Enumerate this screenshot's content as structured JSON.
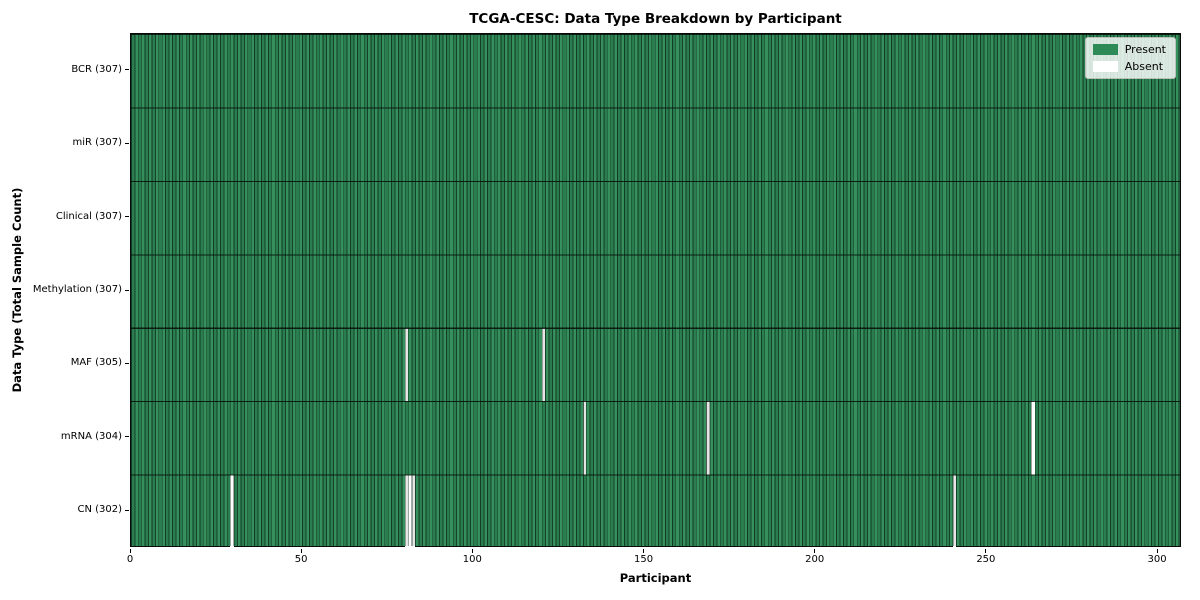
{
  "title": "TCGA-CESC: Data Type Breakdown by Participant",
  "chart_data": {
    "type": "heatmap",
    "title": "TCGA-CESC: Data Type Breakdown by Participant",
    "xlabel": "Participant",
    "ylabel": "Data Type (Total Sample Count)",
    "n_participants": 307,
    "xlim": [
      0,
      307
    ],
    "x_ticks": [
      0,
      50,
      100,
      150,
      200,
      250,
      300
    ],
    "grid": "row-and-cell-edges",
    "rows": [
      {
        "label": "BCR (307)",
        "data_type": "BCR",
        "present_count": 307,
        "absent_count": 0,
        "missing_participants": []
      },
      {
        "label": "miR (307)",
        "data_type": "miR",
        "present_count": 307,
        "absent_count": 0,
        "missing_participants": []
      },
      {
        "label": "Clinical (307)",
        "data_type": "Clinical",
        "present_count": 307,
        "absent_count": 0,
        "missing_participants": []
      },
      {
        "label": "Methylation (307)",
        "data_type": "Methylation",
        "present_count": 307,
        "absent_count": 0,
        "missing_participants": []
      },
      {
        "label": "MAF (305)",
        "data_type": "MAF",
        "present_count": 305,
        "absent_count": 2,
        "missing_participants": [
          80,
          120
        ]
      },
      {
        "label": "mRNA (304)",
        "data_type": "mRNA",
        "present_count": 304,
        "absent_count": 3,
        "missing_participants": [
          132,
          168,
          263
        ]
      },
      {
        "label": "CN (302)",
        "data_type": "CN",
        "present_count": 302,
        "absent_count": 5,
        "missing_participants": [
          29,
          80,
          81,
          82,
          240
        ]
      }
    ],
    "legend": {
      "position": "upper right",
      "entries": [
        {
          "label": "Present",
          "color": "#2e8b57"
        },
        {
          "label": "Absent",
          "color": "#ffffff"
        }
      ]
    },
    "colors": {
      "present": "#2e8b57",
      "absent": "#ffffff",
      "cell_edge": "#14301e",
      "figure_background": "#ffffff"
    }
  }
}
